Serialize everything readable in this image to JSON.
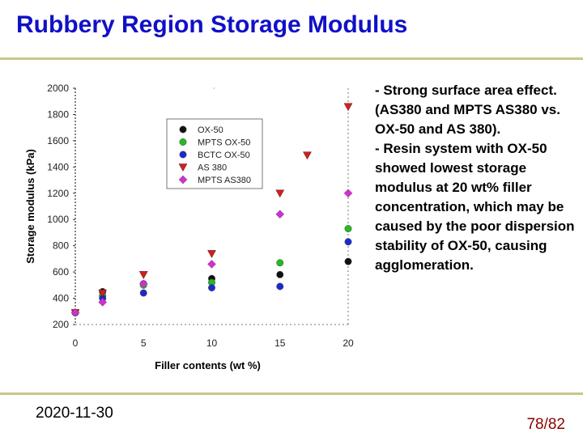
{
  "slide": {
    "title": "Rubbery Region Storage Modulus",
    "date": "2020-11-30",
    "page": "78/82",
    "bullets": [
      "- Strong surface area effect.  (AS380 and MPTS AS380 vs. OX-50 and AS 380).",
      "- Resin system with OX-50 showed lowest storage modulus at 20 wt% filler concentration,   which may be caused by the poor dispersion stability of OX-50, causing agglomeration."
    ],
    "colors": {
      "title": "#1010c8",
      "page_number": "#8b0000",
      "rule": "#c8c888"
    }
  },
  "chart_data": {
    "type": "scatter",
    "title": "",
    "xlabel": "Filler contents (wt %)",
    "ylabel": "Storage modulus (kPa)",
    "xlim": [
      0,
      20
    ],
    "ylim": [
      200,
      2000
    ],
    "xticks": [
      0,
      5,
      10,
      15,
      20
    ],
    "yticks": [
      200,
      400,
      600,
      800,
      1000,
      1200,
      1400,
      1600,
      1800,
      2000
    ],
    "grid": false,
    "legend_position": "upper-left",
    "series": [
      {
        "name": "OX-50",
        "marker": "circle",
        "color": "#111111",
        "x": [
          0,
          2,
          5,
          10,
          15,
          20
        ],
        "y": [
          290,
          450,
          510,
          550,
          580,
          680
        ]
      },
      {
        "name": "MPTS OX-50",
        "marker": "circle",
        "color": "#22bb22",
        "x": [
          0,
          2,
          5,
          10,
          15,
          20
        ],
        "y": [
          290,
          420,
          500,
          520,
          670,
          930
        ]
      },
      {
        "name": "BCTC OX-50",
        "marker": "circle",
        "color": "#1a2ad0",
        "x": [
          0,
          2,
          5,
          10,
          15,
          20
        ],
        "y": [
          290,
          400,
          440,
          480,
          490,
          830
        ]
      },
      {
        "name": "AS 380",
        "marker": "triangle-down",
        "color": "#cc2222",
        "x": [
          0,
          2,
          5,
          10,
          15,
          17,
          20
        ],
        "y": [
          290,
          440,
          580,
          740,
          1200,
          1490,
          1860
        ]
      },
      {
        "name": "MPTS AS380",
        "marker": "diamond",
        "color": "#cc33cc",
        "x": [
          0,
          2,
          5,
          10,
          15,
          20
        ],
        "y": [
          290,
          370,
          510,
          660,
          1040,
          1200
        ]
      }
    ]
  }
}
